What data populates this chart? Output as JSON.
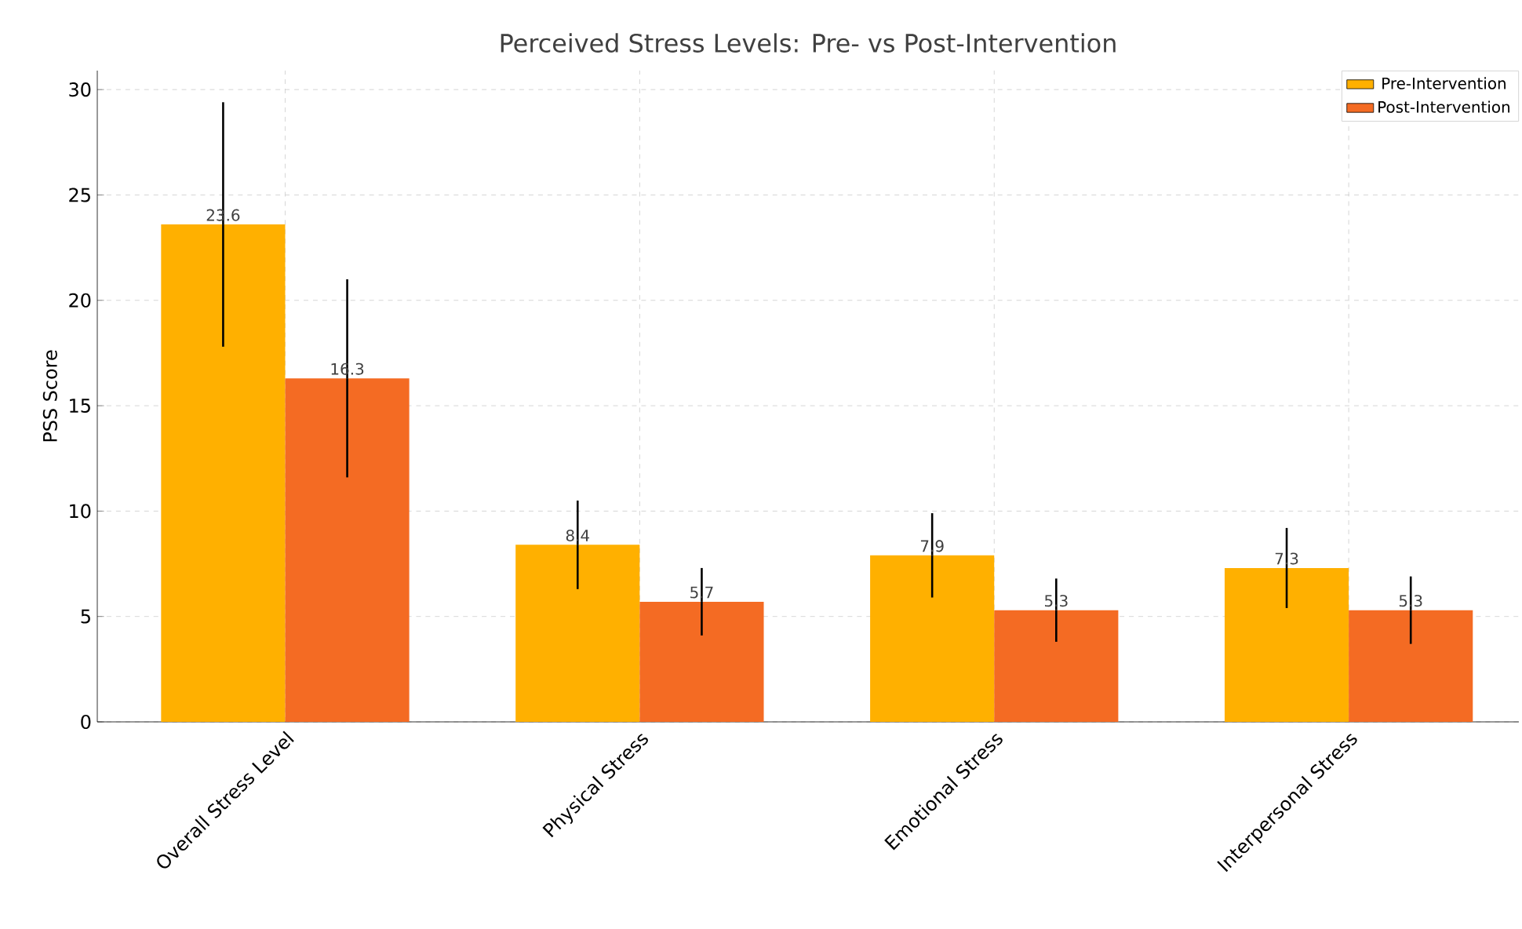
{
  "chart_data": {
    "type": "bar",
    "title": "Perceived Stress Levels: Pre- vs Post-Intervention",
    "ylabel": "PSS Score",
    "categories": [
      "Overall Stress Level",
      "Physical Stress",
      "Emotional Stress",
      "Interpersonal Stress"
    ],
    "series": [
      {
        "name": "Pre-Intervention",
        "color": "#ffb000",
        "values": [
          23.6,
          8.4,
          7.9,
          7.3
        ],
        "errors": [
          5.8,
          2.1,
          2.0,
          1.9
        ]
      },
      {
        "name": "Post-Intervention",
        "color": "#f46b23",
        "values": [
          16.3,
          5.7,
          5.3,
          5.3
        ],
        "errors": [
          4.7,
          1.6,
          1.5,
          1.6
        ]
      }
    ],
    "ylim": [
      0,
      30.9
    ],
    "yticks": [
      0,
      5,
      10,
      15,
      20,
      25,
      30
    ],
    "grid": true,
    "legend": "top right",
    "data_labels": true
  }
}
